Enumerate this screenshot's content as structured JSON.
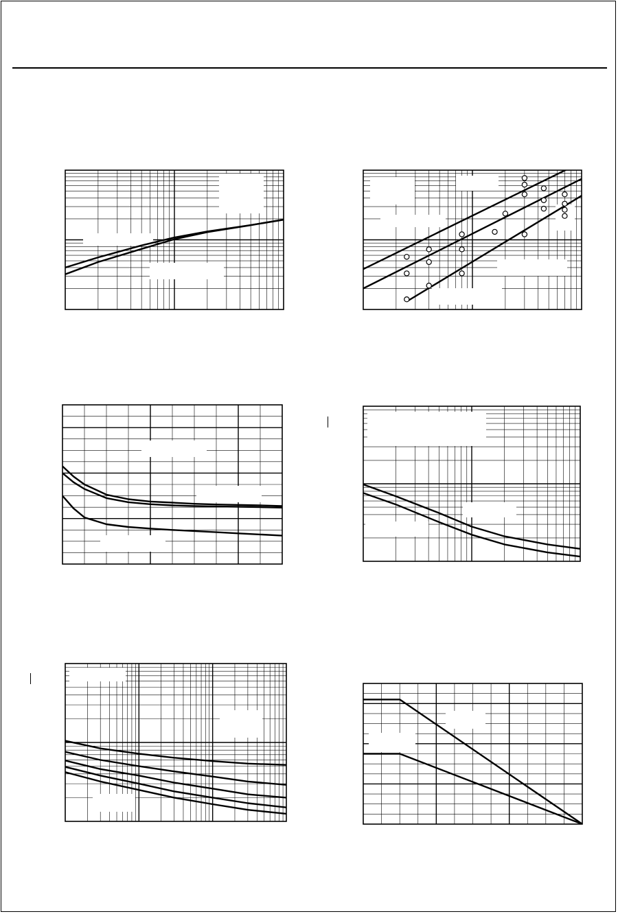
{
  "document": {
    "page_title": "",
    "note": ""
  },
  "chart_data": [
    {
      "id": "chart-1",
      "type": "line",
      "x_scale": "log",
      "y_scale": "log",
      "xlim": [
        1,
        100
      ],
      "ylim": [
        1,
        100
      ],
      "series": [
        {
          "x": [
            1,
            2,
            5,
            10,
            20,
            50,
            100
          ],
          "y": [
            4.0,
            5.6,
            8.3,
            10.8,
            13.2,
            16.3,
            19.5
          ]
        },
        {
          "x": [
            1,
            2,
            5,
            10,
            20,
            50,
            100
          ],
          "y": [
            3.2,
            4.8,
            7.4,
            10.2,
            12.9,
            16.2,
            19.5
          ]
        }
      ]
    },
    {
      "id": "chart-2",
      "type": "line",
      "x_scale": "log",
      "y_scale": "log",
      "xlim": [
        1,
        100
      ],
      "ylim": [
        1,
        100
      ],
      "series": [
        {
          "x": [
            1,
            100
          ],
          "y": [
            3.8,
            130
          ],
          "markers": [
            [
              2.5,
              5.7
            ],
            [
              4.0,
              7.3
            ],
            [
              8.0,
              12.0
            ],
            [
              20.0,
              23.8
            ],
            [
              30.0,
              45.0
            ],
            [
              30.0,
              62.0
            ],
            [
              30.0,
              77.0
            ]
          ]
        },
        {
          "x": [
            1,
            100
          ],
          "y": [
            2.0,
            75
          ],
          "markers": [
            [
              2.5,
              3.3
            ],
            [
              4.0,
              4.8
            ],
            [
              8.0,
              7.3
            ],
            [
              16.0,
              13.0
            ],
            [
              45.0,
              28.0
            ],
            [
              45.0,
              37.0
            ],
            [
              45.0,
              55.0
            ]
          ]
        },
        {
          "x": [
            2.5,
            100
          ],
          "y": [
            1.3,
            43
          ],
          "markers": [
            [
              2.5,
              1.4
            ],
            [
              4.0,
              2.2
            ],
            [
              8.0,
              3.3
            ],
            [
              30.0,
              12.0
            ],
            [
              70.0,
              22.0
            ],
            [
              70.0,
              27.0
            ],
            [
              70.0,
              33.0
            ],
            [
              70.0,
              45.0
            ]
          ]
        }
      ]
    },
    {
      "id": "chart-3",
      "type": "line",
      "x_scale": "linear",
      "y_scale": "linear",
      "xlim": [
        0,
        10
      ],
      "ylim": [
        0,
        7
      ],
      "series": [
        {
          "x": [
            0,
            0.5,
            1,
            2,
            3,
            4,
            5,
            6,
            7,
            8,
            9,
            10
          ],
          "y": [
            4.3,
            3.85,
            3.5,
            3.05,
            2.85,
            2.75,
            2.7,
            2.65,
            2.62,
            2.6,
            2.58,
            2.55
          ]
        },
        {
          "x": [
            0,
            0.5,
            1,
            2,
            3,
            4,
            5,
            6,
            7,
            8,
            9,
            10
          ],
          "y": [
            4.0,
            3.6,
            3.3,
            2.9,
            2.72,
            2.63,
            2.58,
            2.55,
            2.53,
            2.52,
            2.5,
            2.48
          ]
        },
        {
          "x": [
            0,
            0.5,
            1,
            2,
            3,
            4,
            5,
            6,
            7,
            8,
            9,
            10
          ],
          "y": [
            3.0,
            2.45,
            2.05,
            1.75,
            1.63,
            1.56,
            1.5,
            1.45,
            1.4,
            1.35,
            1.3,
            1.25
          ]
        }
      ]
    },
    {
      "id": "chart-4",
      "type": "line",
      "x_scale": "log",
      "y_scale": "log",
      "xlim": [
        1,
        100
      ],
      "ylim": [
        1,
        100
      ],
      "series": [
        {
          "x": [
            1,
            2,
            5,
            10,
            20,
            50,
            100
          ],
          "y": [
            9.8,
            6.9,
            4.2,
            2.8,
            2.1,
            1.65,
            1.45
          ]
        },
        {
          "x": [
            1,
            2,
            5,
            10,
            20,
            50,
            100
          ],
          "y": [
            7.6,
            5.4,
            3.2,
            2.2,
            1.65,
            1.3,
            1.15
          ]
        }
      ]
    },
    {
      "id": "chart-5",
      "type": "line",
      "x_scale": "log",
      "y_scale": "log",
      "xlim": [
        1,
        1000
      ],
      "ylim": [
        1,
        100
      ],
      "series": [
        {
          "x": [
            1,
            3,
            10,
            30,
            100,
            300,
            1000
          ],
          "y": [
            10.5,
            8.4,
            7.2,
            6.4,
            5.8,
            5.4,
            5.2
          ]
        },
        {
          "x": [
            1,
            3,
            10,
            30,
            100,
            300,
            1000
          ],
          "y": [
            7.6,
            6.0,
            5.0,
            4.3,
            3.7,
            3.2,
            2.9
          ]
        },
        {
          "x": [
            1,
            3,
            10,
            30,
            100,
            300,
            1000
          ],
          "y": [
            5.9,
            4.6,
            3.8,
            3.1,
            2.6,
            2.2,
            2.0
          ]
        },
        {
          "x": [
            1,
            3,
            10,
            30,
            100,
            300,
            1000
          ],
          "y": [
            4.9,
            3.8,
            3.0,
            2.4,
            2.0,
            1.7,
            1.5
          ]
        },
        {
          "x": [
            1,
            3,
            10,
            30,
            100,
            300,
            1000
          ],
          "y": [
            4.2,
            3.2,
            2.5,
            2.0,
            1.65,
            1.4,
            1.25
          ]
        }
      ]
    },
    {
      "id": "chart-6",
      "type": "line",
      "x_scale": "linear",
      "y_scale": "linear",
      "xlim": [
        0,
        12
      ],
      "ylim": [
        0,
        7
      ],
      "series": [
        {
          "x": [
            0,
            2,
            12
          ],
          "y": [
            6.2,
            6.2,
            0
          ]
        },
        {
          "x": [
            0,
            2,
            12
          ],
          "y": [
            3.5,
            3.5,
            0
          ]
        }
      ]
    }
  ]
}
